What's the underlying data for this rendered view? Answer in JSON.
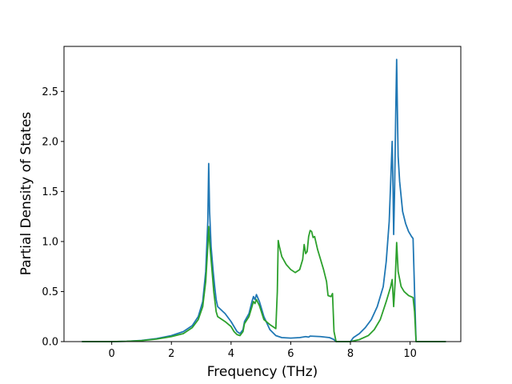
{
  "chart_data": {
    "type": "line",
    "title": "",
    "xlabel": "Frequency (THz)",
    "ylabel": "Partial Density of States",
    "xlim": [
      -1.6,
      11.7
    ],
    "ylim": [
      0,
      2.95
    ],
    "xticks": [
      0,
      2,
      4,
      6,
      8,
      10
    ],
    "xtick_labels": [
      "0",
      "2",
      "4",
      "6",
      "8",
      "10"
    ],
    "yticks": [
      0.0,
      0.5,
      1.0,
      1.5,
      2.0,
      2.5
    ],
    "ytick_labels": [
      "0.0",
      "0.5",
      "1.0",
      "1.5",
      "2.0",
      "2.5"
    ],
    "grid": false,
    "legend": "none",
    "series": [
      {
        "color": "#1f77b4",
        "points": [
          [
            -1.0,
            0
          ],
          [
            0.0,
            0
          ],
          [
            0.5,
            0.003
          ],
          [
            1.0,
            0.012
          ],
          [
            1.5,
            0.03
          ],
          [
            2.0,
            0.06
          ],
          [
            2.4,
            0.1
          ],
          [
            2.7,
            0.16
          ],
          [
            2.9,
            0.25
          ],
          [
            3.05,
            0.4
          ],
          [
            3.15,
            0.7
          ],
          [
            3.22,
            1.2
          ],
          [
            3.25,
            1.78
          ],
          [
            3.28,
            1.3
          ],
          [
            3.33,
            0.95
          ],
          [
            3.4,
            0.7
          ],
          [
            3.45,
            0.55
          ],
          [
            3.5,
            0.42
          ],
          [
            3.55,
            0.35
          ],
          [
            3.8,
            0.28
          ],
          [
            4.0,
            0.2
          ],
          [
            4.1,
            0.15
          ],
          [
            4.2,
            0.1
          ],
          [
            4.3,
            0.08
          ],
          [
            4.4,
            0.12
          ],
          [
            4.45,
            0.2
          ],
          [
            4.6,
            0.28
          ],
          [
            4.7,
            0.4
          ],
          [
            4.75,
            0.45
          ],
          [
            4.8,
            0.42
          ],
          [
            4.85,
            0.47
          ],
          [
            4.95,
            0.4
          ],
          [
            5.1,
            0.25
          ],
          [
            5.3,
            0.12
          ],
          [
            5.5,
            0.06
          ],
          [
            5.7,
            0.04
          ],
          [
            6.0,
            0.035
          ],
          [
            6.3,
            0.04
          ],
          [
            6.5,
            0.05
          ],
          [
            6.6,
            0.045
          ],
          [
            6.65,
            0.055
          ],
          [
            7.0,
            0.05
          ],
          [
            7.3,
            0.04
          ],
          [
            7.45,
            0.02
          ],
          [
            7.52,
            0
          ],
          [
            8.0,
            0
          ],
          [
            8.1,
            0.04
          ],
          [
            8.3,
            0.08
          ],
          [
            8.5,
            0.14
          ],
          [
            8.7,
            0.22
          ],
          [
            8.9,
            0.35
          ],
          [
            9.1,
            0.55
          ],
          [
            9.2,
            0.8
          ],
          [
            9.3,
            1.2
          ],
          [
            9.35,
            1.6
          ],
          [
            9.4,
            2.0
          ],
          [
            9.43,
            1.5
          ],
          [
            9.45,
            1.07
          ],
          [
            9.48,
            1.5
          ],
          [
            9.52,
            2.3
          ],
          [
            9.55,
            2.82
          ],
          [
            9.58,
            2.2
          ],
          [
            9.6,
            1.85
          ],
          [
            9.65,
            1.6
          ],
          [
            9.75,
            1.3
          ],
          [
            9.85,
            1.18
          ],
          [
            9.95,
            1.1
          ],
          [
            10.05,
            1.05
          ],
          [
            10.1,
            1.03
          ],
          [
            10.15,
            0.5
          ],
          [
            10.2,
            0
          ],
          [
            11.2,
            0
          ]
        ]
      },
      {
        "color": "#2ca02c",
        "points": [
          [
            -1.0,
            0
          ],
          [
            0.0,
            0
          ],
          [
            0.5,
            0.003
          ],
          [
            1.0,
            0.01
          ],
          [
            1.5,
            0.025
          ],
          [
            2.0,
            0.05
          ],
          [
            2.4,
            0.08
          ],
          [
            2.7,
            0.14
          ],
          [
            2.9,
            0.22
          ],
          [
            3.05,
            0.35
          ],
          [
            3.15,
            0.6
          ],
          [
            3.22,
            0.95
          ],
          [
            3.25,
            1.15
          ],
          [
            3.28,
            1.0
          ],
          [
            3.35,
            0.75
          ],
          [
            3.42,
            0.5
          ],
          [
            3.5,
            0.3
          ],
          [
            3.55,
            0.25
          ],
          [
            3.8,
            0.2
          ],
          [
            4.0,
            0.15
          ],
          [
            4.1,
            0.1
          ],
          [
            4.2,
            0.07
          ],
          [
            4.3,
            0.06
          ],
          [
            4.4,
            0.1
          ],
          [
            4.45,
            0.18
          ],
          [
            4.6,
            0.25
          ],
          [
            4.7,
            0.35
          ],
          [
            4.75,
            0.4
          ],
          [
            4.8,
            0.38
          ],
          [
            4.85,
            0.42
          ],
          [
            4.95,
            0.36
          ],
          [
            5.1,
            0.22
          ],
          [
            5.3,
            0.17
          ],
          [
            5.5,
            0.13
          ],
          [
            5.55,
            0.5
          ],
          [
            5.58,
            1.01
          ],
          [
            5.62,
            0.95
          ],
          [
            5.7,
            0.85
          ],
          [
            5.85,
            0.77
          ],
          [
            6.0,
            0.72
          ],
          [
            6.15,
            0.69
          ],
          [
            6.3,
            0.72
          ],
          [
            6.4,
            0.82
          ],
          [
            6.45,
            0.97
          ],
          [
            6.5,
            0.88
          ],
          [
            6.55,
            0.9
          ],
          [
            6.6,
            1.05
          ],
          [
            6.65,
            1.11
          ],
          [
            6.7,
            1.1
          ],
          [
            6.75,
            1.04
          ],
          [
            6.8,
            1.05
          ],
          [
            6.9,
            0.92
          ],
          [
            7.0,
            0.82
          ],
          [
            7.1,
            0.72
          ],
          [
            7.2,
            0.6
          ],
          [
            7.25,
            0.46
          ],
          [
            7.35,
            0.45
          ],
          [
            7.4,
            0.48
          ],
          [
            7.45,
            0.1
          ],
          [
            7.52,
            0
          ],
          [
            8.0,
            0
          ],
          [
            8.3,
            0.02
          ],
          [
            8.6,
            0.06
          ],
          [
            8.8,
            0.12
          ],
          [
            9.0,
            0.22
          ],
          [
            9.2,
            0.4
          ],
          [
            9.35,
            0.55
          ],
          [
            9.4,
            0.62
          ],
          [
            9.45,
            0.35
          ],
          [
            9.5,
            0.6
          ],
          [
            9.55,
            0.99
          ],
          [
            9.6,
            0.7
          ],
          [
            9.7,
            0.55
          ],
          [
            9.8,
            0.5
          ],
          [
            9.95,
            0.46
          ],
          [
            10.1,
            0.44
          ],
          [
            10.15,
            0.3
          ],
          [
            10.2,
            0
          ],
          [
            11.2,
            0
          ]
        ]
      }
    ]
  }
}
